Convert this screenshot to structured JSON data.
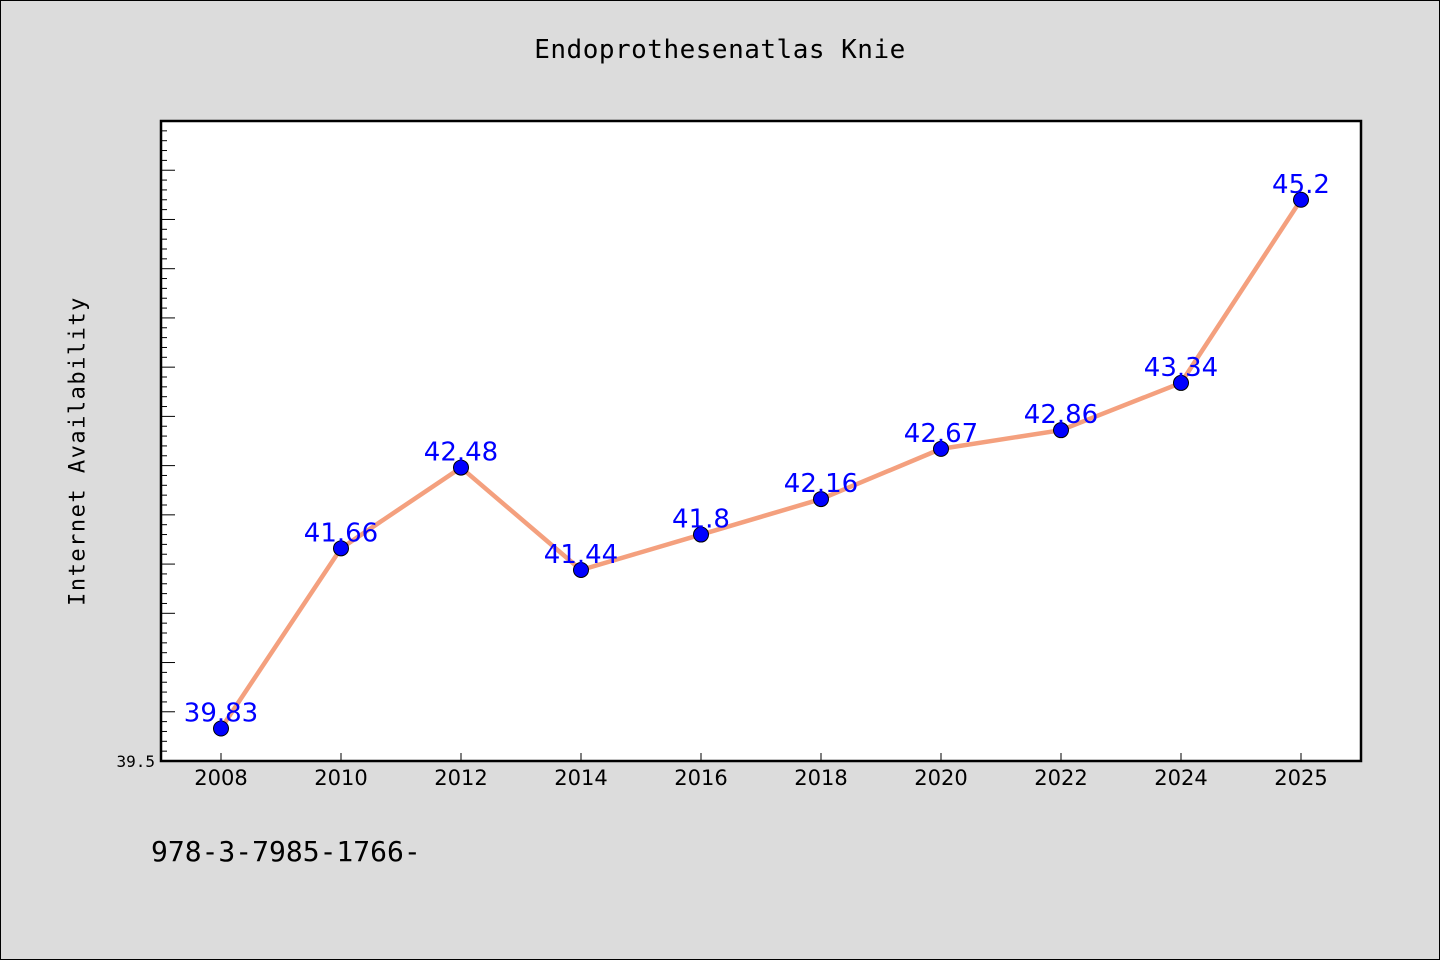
{
  "chart_data": {
    "type": "line",
    "title": "Endoprothesenatlas Knie",
    "xlabel": "",
    "ylabel": "Internet Availability",
    "categories": [
      "2008",
      "2010",
      "2012",
      "2014",
      "2016",
      "2018",
      "2020",
      "2022",
      "2024",
      "2025"
    ],
    "series": [
      {
        "values": [
          39.83,
          41.66,
          42.48,
          41.44,
          41.8,
          42.16,
          42.67,
          42.86,
          43.34,
          45.2
        ],
        "labels": [
          "39.83",
          "41.66",
          "42.48",
          "41.44",
          "41.8",
          "42.16",
          "42.67",
          "42.86",
          "43.34",
          "45.2"
        ]
      }
    ],
    "ylim": [
      39.5,
      46.0
    ],
    "ytick_labels": [
      "39.5"
    ],
    "grid": false,
    "colors": {
      "line": "#f4a07e",
      "marker": "#0000ff",
      "data_label": "#0000ff",
      "background": "#dcdcdc",
      "plot_background": "#ffffff"
    }
  },
  "footnote": "978-3-7985-1766-"
}
